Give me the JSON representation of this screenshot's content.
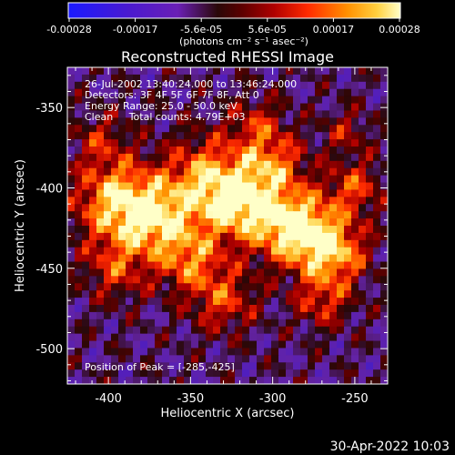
{
  "window": {
    "timestamp": "30-Apr-2022 10:03"
  },
  "colorbar": {
    "tick_labels": [
      "-0.00028",
      "-0.00017",
      "-5.6e-05",
      "5.6e-05",
      "0.00017",
      "0.00028"
    ],
    "unit_label": "(photons cm⁻² s⁻¹ asec⁻²)",
    "range": [
      -0.00028,
      0.00028
    ],
    "colors": [
      "#1a1aff",
      "#6a1fb5",
      "#2a0a0a",
      "#8a0000",
      "#ff3000",
      "#ffb000",
      "#ffffaa"
    ]
  },
  "chart_data": {
    "type": "heatmap",
    "title": "Reconstructed RHESSI Image",
    "xlabel": "Heliocentric X (arcsec)",
    "ylabel": "Heliocentric Y (arcsec)",
    "xlim": [
      -425,
      -230
    ],
    "ylim": [
      -522,
      -325
    ],
    "x_ticks": [
      -400,
      -350,
      -300,
      -250
    ],
    "y_ticks": [
      -350,
      -400,
      -450,
      -500
    ],
    "x_tick_labels": [
      "-400",
      "-350",
      "-300",
      "-250"
    ],
    "y_tick_labels": [
      "-350",
      "-400",
      "-450",
      "-500"
    ],
    "peak": [
      -285,
      -425
    ],
    "annotations": [
      "26-Jul-2002 13:40:24.000 to 13:46:24.000",
      "Detectors: 3F 4F 5F 6F 7F 8F, Att 0",
      "Energy Range: 25.0 - 50.0 keV",
      "Clean     Total counts: 4.79E+03"
    ],
    "peak_label": "Position of Peak = [-285,-425]"
  }
}
